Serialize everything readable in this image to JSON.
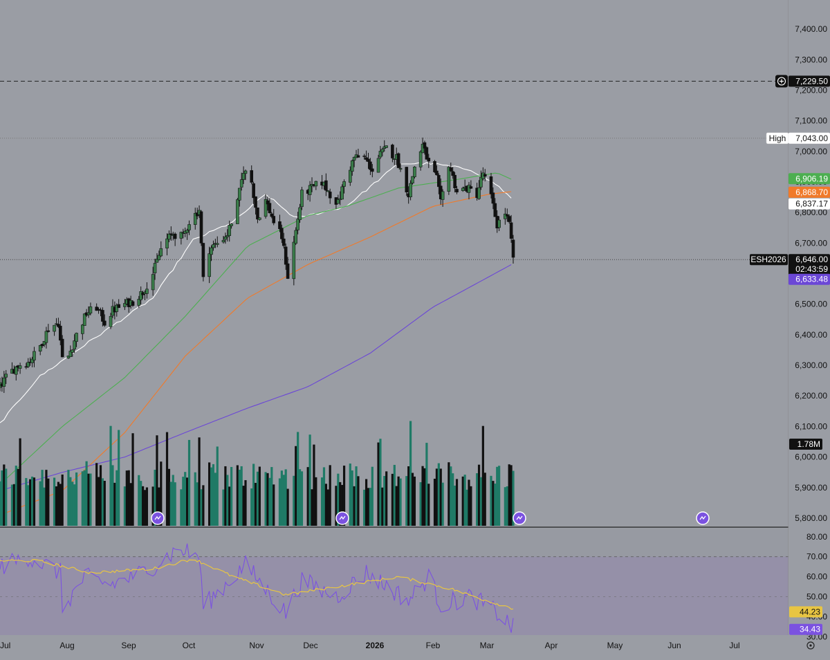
{
  "colors": {
    "background": "#9a9da4",
    "rsi_band": "#9590a8",
    "up_candle": "#3a7d4a",
    "down_candle": "#111111",
    "vol_up": "#1f7a66",
    "vol_down": "#111111",
    "ma_white": "#ffffff",
    "ma_green": "#4caf50",
    "ma_orange": "#f07a2a",
    "ma_purple": "#6b47d6",
    "rsi_line": "#7b52e0",
    "rsi_ma": "#e8c542",
    "last_price_tag": "#111111"
  },
  "symbol_tag": "ESH2026",
  "high_tag": {
    "label": "High",
    "value": "7,043.00"
  },
  "alert_price": "7,229.50",
  "price_tags": {
    "last": "6,646.00",
    "countdown": "02:43:59",
    "green": "6,906.19",
    "orange": "6,868.70",
    "white": "6,837.17",
    "purple": "6,633.48",
    "volume": "1.78M"
  },
  "rsi_tags": {
    "ma": "44.23",
    "rsi": "34.43"
  },
  "settings_icon": "gear-icon",
  "chart_data": {
    "type": "candlestick",
    "price_axis": {
      "ticks": [
        "7,400.00",
        "7,300.00",
        "7,200.00",
        "7,100.00",
        "7,000.00",
        "6,900.00",
        "6,800.00",
        "6,700.00",
        "6,600.00",
        "6,500.00",
        "6,400.00",
        "6,300.00",
        "6,200.00",
        "6,100.00",
        "6,000.00",
        "5,900.00",
        "5,800.00"
      ],
      "tick_values": [
        7400,
        7300,
        7200,
        7100,
        7000,
        6900,
        6800,
        6700,
        6600,
        6500,
        6400,
        6300,
        6200,
        6100,
        6000,
        5900,
        5800
      ],
      "ylim": [
        5775,
        7450
      ]
    },
    "time_axis": {
      "labels": [
        "Jul",
        "Aug",
        "Sep",
        "Oct",
        "Nov",
        "Dec",
        "2026",
        "Feb",
        "Mar",
        "Apr",
        "May",
        "Jun",
        "Jul"
      ],
      "bold_label": "2026"
    },
    "rsi_axis": {
      "ticks": [
        "80.00",
        "70.00",
        "60.00",
        "50.00",
        "40.00",
        "30.00"
      ],
      "tick_values": [
        80,
        70,
        60,
        50,
        40,
        30
      ],
      "ylim": [
        25,
        82
      ],
      "band": [
        30,
        70
      ]
    },
    "reference_lines": [
      7229.5,
      7043.0,
      6646.0
    ],
    "date_range": "2025-07-01 to 2026-03-13",
    "price_anchors": [
      [
        "2025-07-01",
        6230
      ],
      [
        "2025-07-05",
        6270
      ],
      [
        "2025-07-10",
        6300
      ],
      [
        "2025-07-15",
        6310
      ],
      [
        "2025-07-20",
        6350
      ],
      [
        "2025-07-25",
        6420
      ],
      [
        "2025-07-30",
        6440
      ],
      [
        "2025-08-01",
        6320
      ],
      [
        "2025-08-04",
        6330
      ],
      [
        "2025-08-08",
        6400
      ],
      [
        "2025-08-13",
        6470
      ],
      [
        "2025-08-18",
        6490
      ],
      [
        "2025-08-22",
        6440
      ],
      [
        "2025-08-26",
        6480
      ],
      [
        "2025-09-01",
        6500
      ],
      [
        "2025-09-05",
        6510
      ],
      [
        "2025-09-10",
        6540
      ],
      [
        "2025-09-15",
        6600
      ],
      [
        "2025-09-20",
        6700
      ],
      [
        "2025-09-25",
        6730
      ],
      [
        "2025-09-30",
        6720
      ],
      [
        "2025-10-03",
        6770
      ],
      [
        "2025-10-08",
        6810
      ],
      [
        "2025-10-10",
        6580
      ],
      [
        "2025-10-13",
        6680
      ],
      [
        "2025-10-17",
        6700
      ],
      [
        "2025-10-22",
        6730
      ],
      [
        "2025-10-27",
        6830
      ],
      [
        "2025-10-30",
        6940
      ],
      [
        "2025-11-03",
        6900
      ],
      [
        "2025-11-06",
        6780
      ],
      [
        "2025-11-10",
        6840
      ],
      [
        "2025-11-14",
        6770
      ],
      [
        "2025-11-18",
        6720
      ],
      [
        "2025-11-20",
        6640
      ],
      [
        "2025-11-21",
        6590
      ],
      [
        "2025-11-24",
        6700
      ],
      [
        "2025-11-28",
        6860
      ],
      [
        "2025-12-03",
        6880
      ],
      [
        "2025-12-08",
        6900
      ],
      [
        "2025-12-12",
        6860
      ],
      [
        "2025-12-16",
        6830
      ],
      [
        "2025-12-19",
        6900
      ],
      [
        "2025-12-24",
        6980
      ],
      [
        "2025-12-29",
        6980
      ],
      [
        "2026-01-02",
        6940
      ],
      [
        "2026-01-06",
        6990
      ],
      [
        "2026-01-09",
        7010
      ],
      [
        "2026-01-14",
        6980
      ],
      [
        "2026-01-20",
        6860
      ],
      [
        "2026-01-23",
        6950
      ],
      [
        "2026-01-27",
        7020
      ],
      [
        "2026-01-30",
        6960
      ],
      [
        "2026-02-03",
        6910
      ],
      [
        "2026-02-05",
        6830
      ],
      [
        "2026-02-09",
        6960
      ],
      [
        "2026-02-13",
        6870
      ],
      [
        "2026-02-18",
        6880
      ],
      [
        "2026-02-23",
        6860
      ],
      [
        "2026-02-26",
        6930
      ],
      [
        "2026-03-02",
        6850
      ],
      [
        "2026-03-05",
        6760
      ],
      [
        "2026-03-09",
        6800
      ],
      [
        "2026-03-11",
        6760
      ],
      [
        "2026-03-13",
        6646
      ]
    ],
    "moving_averages": [
      {
        "color": "white",
        "last": 6837.17,
        "points": [
          [
            "2025-07-01",
            6110
          ],
          [
            "2025-07-20",
            6260
          ],
          [
            "2025-08-15",
            6380
          ],
          [
            "2025-09-15",
            6520
          ],
          [
            "2025-10-05",
            6710
          ],
          [
            "2025-10-25",
            6770
          ],
          [
            "2025-11-10",
            6860
          ],
          [
            "2025-11-25",
            6780
          ],
          [
            "2025-12-20",
            6820
          ],
          [
            "2026-01-15",
            6960
          ],
          [
            "2026-02-01",
            6960
          ],
          [
            "2026-02-20",
            6940
          ],
          [
            "2026-03-05",
            6890
          ],
          [
            "2026-03-13",
            6840
          ]
        ]
      },
      {
        "color": "green",
        "last": 6906.19,
        "points": [
          [
            "2025-07-01",
            5910
          ],
          [
            "2025-08-01",
            6100
          ],
          [
            "2025-09-01",
            6260
          ],
          [
            "2025-10-01",
            6460
          ],
          [
            "2025-11-01",
            6690
          ],
          [
            "2025-12-01",
            6790
          ],
          [
            "2025-12-20",
            6820
          ],
          [
            "2026-01-15",
            6880
          ],
          [
            "2026-02-15",
            6910
          ],
          [
            "2026-03-05",
            6930
          ],
          [
            "2026-03-13",
            6906
          ]
        ]
      },
      {
        "color": "orange",
        "last": 6868.7,
        "points": [
          [
            "2025-07-01",
            5810
          ],
          [
            "2025-08-01",
            5890
          ],
          [
            "2025-09-01",
            6080
          ],
          [
            "2025-10-01",
            6330
          ],
          [
            "2025-11-01",
            6520
          ],
          [
            "2025-12-01",
            6630
          ],
          [
            "2026-01-01",
            6720
          ],
          [
            "2026-02-01",
            6820
          ],
          [
            "2026-03-01",
            6860
          ],
          [
            "2026-03-13",
            6869
          ]
        ]
      },
      {
        "color": "purple",
        "last": 6633.48,
        "points": [
          [
            "2025-07-01",
            5890
          ],
          [
            "2025-08-01",
            5950
          ],
          [
            "2025-09-01",
            6000
          ],
          [
            "2025-10-01",
            6080
          ],
          [
            "2025-11-01",
            6160
          ],
          [
            "2025-12-01",
            6230
          ],
          [
            "2026-01-01",
            6340
          ],
          [
            "2026-02-01",
            6490
          ],
          [
            "2026-03-01",
            6590
          ],
          [
            "2026-03-13",
            6633
          ]
        ]
      }
    ],
    "volume": {
      "axis_label": "1.78M",
      "typical_range": [
        0.6,
        2.6
      ]
    },
    "rsi": {
      "last": 34.43,
      "ma_last": 44.23,
      "rsi_anchors": [
        [
          "2025-07-01",
          65
        ],
        [
          "2025-07-15",
          70
        ],
        [
          "2025-07-31",
          62
        ],
        [
          "2025-08-01",
          44
        ],
        [
          "2025-08-12",
          60
        ],
        [
          "2025-08-25",
          56
        ],
        [
          "2025-09-10",
          62
        ],
        [
          "2025-09-28",
          74
        ],
        [
          "2025-10-08",
          70
        ],
        [
          "2025-10-10",
          45
        ],
        [
          "2025-10-20",
          55
        ],
        [
          "2025-10-31",
          66
        ],
        [
          "2025-11-20",
          42
        ],
        [
          "2025-11-28",
          58
        ],
        [
          "2025-12-15",
          50
        ],
        [
          "2025-12-30",
          62
        ],
        [
          "2026-01-20",
          48
        ],
        [
          "2026-01-30",
          60
        ],
        [
          "2026-02-05",
          46
        ],
        [
          "2026-02-20",
          50
        ],
        [
          "2026-03-05",
          42
        ],
        [
          "2026-03-13",
          34.43
        ]
      ],
      "ma_anchors": [
        [
          "2025-07-01",
          68
        ],
        [
          "2025-07-20",
          68
        ],
        [
          "2025-08-15",
          62
        ],
        [
          "2025-09-15",
          64
        ],
        [
          "2025-10-05",
          69
        ],
        [
          "2025-10-25",
          60
        ],
        [
          "2025-11-20",
          51
        ],
        [
          "2025-12-15",
          55
        ],
        [
          "2026-01-15",
          60
        ],
        [
          "2026-02-10",
          54
        ],
        [
          "2026-02-28",
          48
        ],
        [
          "2026-03-13",
          44.23
        ]
      ]
    }
  }
}
